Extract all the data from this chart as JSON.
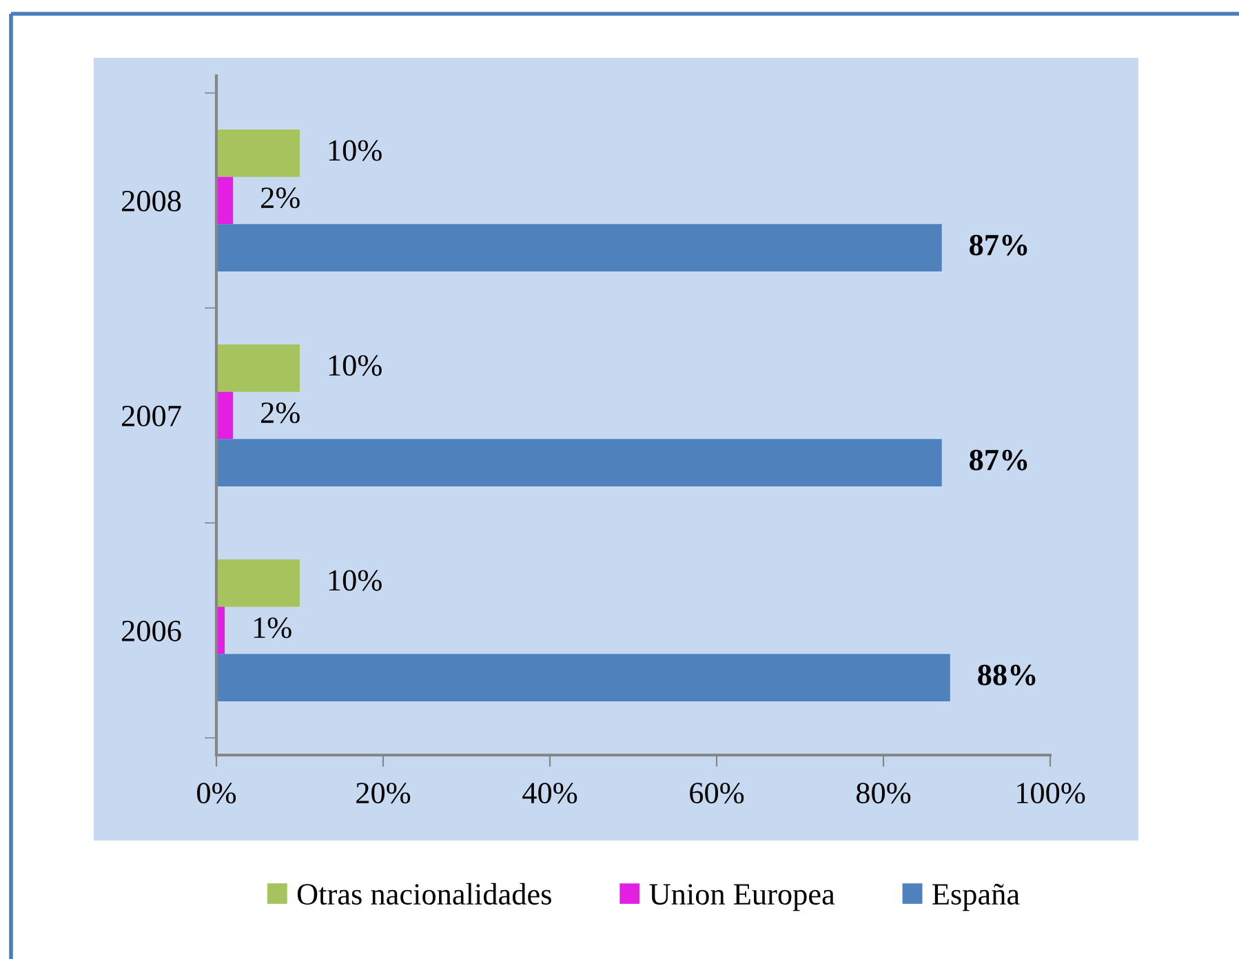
{
  "chart_data": {
    "type": "bar",
    "orientation": "horizontal",
    "categories": [
      "2008",
      "2007",
      "2006"
    ],
    "series": [
      {
        "name": "Otras nacionalidades",
        "color": "#a6c35e",
        "values": [
          10,
          10,
          10
        ],
        "value_labels": [
          "10%",
          "10%",
          "10%"
        ]
      },
      {
        "name": "Union Europea",
        "color": "#e31fe3",
        "values": [
          2,
          2,
          1
        ],
        "value_labels": [
          "2%",
          "2%",
          "1%"
        ]
      },
      {
        "name": "España",
        "color": "#4f81bd",
        "values": [
          87,
          87,
          88
        ],
        "value_labels": [
          "87%",
          "87%",
          "88%"
        ]
      }
    ],
    "xlim": [
      0,
      100
    ],
    "xticks": [
      {
        "value": 0,
        "label": "0%"
      },
      {
        "value": 20,
        "label": "20%"
      },
      {
        "value": 40,
        "label": "40%"
      },
      {
        "value": 60,
        "label": "60%"
      },
      {
        "value": 80,
        "label": "80%"
      },
      {
        "value": 100,
        "label": "100%"
      }
    ],
    "grid": false,
    "legend": "bottom"
  }
}
